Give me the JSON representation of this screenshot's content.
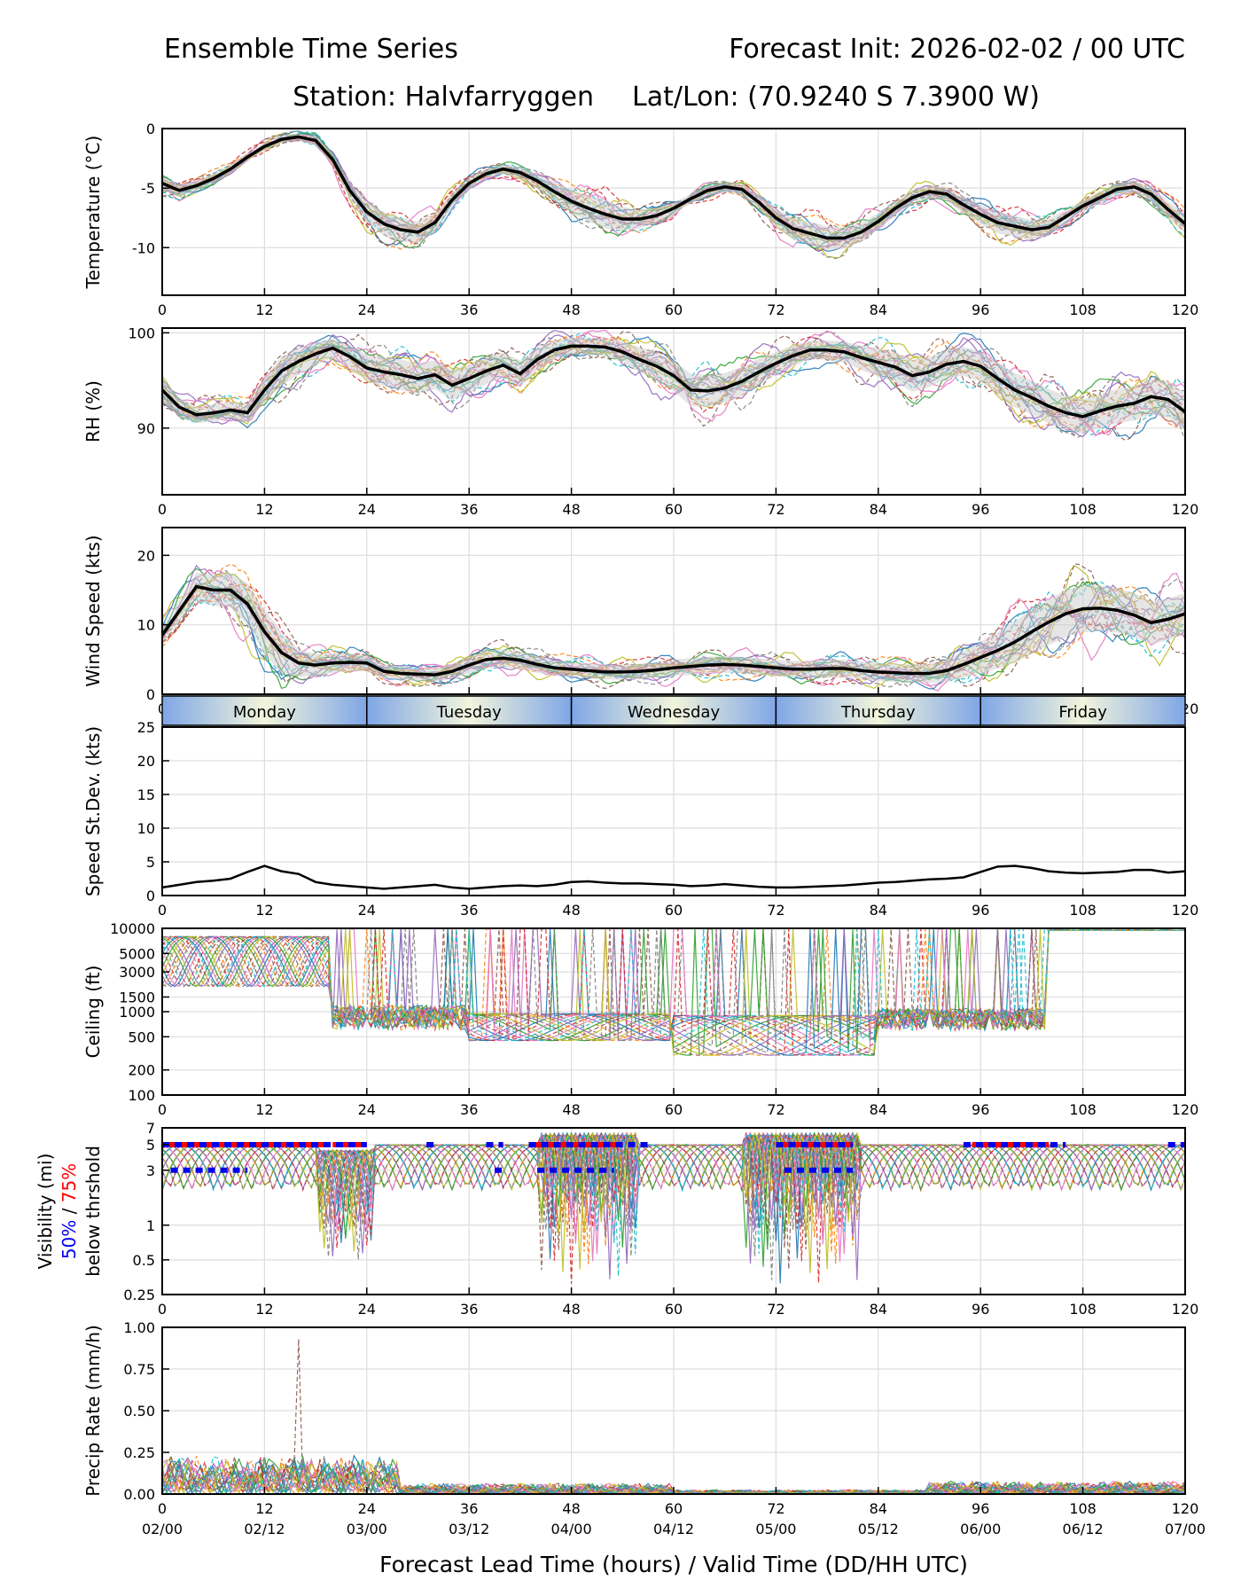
{
  "header": {
    "title_left": "Ensemble Time Series",
    "title_right": "Forecast Init: 2026-02-02 / 00 UTC",
    "station": "Station: Halvfarryggen",
    "latlon": "Lat/Lon: (70.9240 S 7.3900 W)"
  },
  "x_axis": {
    "label": "Forecast Lead Time (hours) / Valid Time (DD/HH UTC)",
    "range": [
      0,
      120
    ],
    "lead_ticks": [
      "0",
      "12",
      "24",
      "36",
      "48",
      "60",
      "72",
      "84",
      "96",
      "108",
      "120"
    ],
    "valid_ticks": [
      "02/00",
      "02/12",
      "03/00",
      "03/12",
      "04/00",
      "04/12",
      "05/00",
      "05/12",
      "06/00",
      "06/12",
      "07/00"
    ]
  },
  "days": {
    "labels": [
      "Monday",
      "Tuesday",
      "Wednesday",
      "Thursday",
      "Friday"
    ],
    "colors": {
      "edge": "#7fa6e6",
      "center": "#f2f5dc"
    }
  },
  "visibility_label": {
    "line1": "Visibility (mi)",
    "p50": "50%",
    "sep": " / ",
    "p75": "75%",
    "line3": "below thrshold"
  },
  "colors": {
    "mean": "#000000",
    "grid": "#dddddd",
    "p50": "#0000ee",
    "p75": "#ff0000",
    "spread": "#cccccc",
    "members": [
      "#1f77b4",
      "#ff7f0e",
      "#2ca02c",
      "#d62728",
      "#9467bd",
      "#8c564b",
      "#e377c2",
      "#7f7f7f",
      "#bcbd22",
      "#17becf"
    ]
  },
  "chart_data": [
    {
      "type": "line",
      "name": "temperature",
      "ylabel": "Temperature (°C)",
      "ylim": [
        -14,
        0
      ],
      "yticks": [
        "0",
        "-5",
        "-10"
      ],
      "ytick_values": [
        0,
        -5,
        -10
      ],
      "x": [
        0,
        2,
        4,
        6,
        8,
        10,
        12,
        14,
        16,
        18,
        20,
        22,
        24,
        26,
        28,
        30,
        32,
        34,
        36,
        38,
        40,
        42,
        44,
        46,
        48,
        50,
        52,
        54,
        56,
        58,
        60,
        62,
        64,
        66,
        68,
        70,
        72,
        74,
        76,
        78,
        80,
        82,
        84,
        86,
        88,
        90,
        92,
        94,
        96,
        98,
        100,
        102,
        104,
        106,
        108,
        110,
        112,
        114,
        116,
        118,
        120
      ],
      "mean": [
        -4.6,
        -5.2,
        -4.8,
        -4.2,
        -3.4,
        -2.4,
        -1.5,
        -0.9,
        -0.7,
        -1.0,
        -2.6,
        -5.2,
        -7.0,
        -8.0,
        -8.5,
        -8.7,
        -7.9,
        -6.0,
        -4.6,
        -3.8,
        -3.4,
        -3.7,
        -4.4,
        -5.3,
        -6.1,
        -6.7,
        -7.2,
        -7.6,
        -7.6,
        -7.3,
        -6.7,
        -5.9,
        -5.2,
        -4.9,
        -5.1,
        -6.2,
        -7.5,
        -8.4,
        -8.8,
        -9.2,
        -9.2,
        -8.7,
        -7.8,
        -6.7,
        -5.8,
        -5.3,
        -5.5,
        -6.4,
        -7.2,
        -7.9,
        -8.2,
        -8.5,
        -8.3,
        -7.4,
        -6.5,
        -5.8,
        -5.1,
        -4.9,
        -5.5,
        -6.8,
        -8.0
      ],
      "stdev": [
        0.6,
        0.5,
        0.4,
        0.4,
        0.4,
        0.3,
        0.3,
        0.3,
        0.3,
        0.4,
        0.5,
        0.7,
        0.9,
        1.0,
        1.0,
        0.9,
        0.8,
        0.6,
        0.5,
        0.4,
        0.4,
        0.5,
        0.6,
        0.8,
        1.0,
        1.1,
        1.2,
        1.0,
        0.8,
        0.6,
        0.5,
        0.4,
        0.4,
        0.4,
        0.5,
        0.6,
        0.8,
        0.9,
        1.0,
        1.0,
        0.9,
        0.8,
        0.7,
        0.6,
        0.6,
        0.5,
        0.6,
        0.7,
        0.8,
        0.9,
        0.9,
        0.8,
        0.7,
        0.6,
        0.5,
        0.5,
        0.5,
        0.5,
        0.6,
        0.7,
        0.8
      ],
      "members": 20
    },
    {
      "type": "line",
      "name": "rh",
      "ylabel": "RH (%)",
      "ylim": [
        83,
        100.5
      ],
      "yticks": [
        "100",
        "90"
      ],
      "ytick_values": [
        100,
        90
      ],
      "x": [
        0,
        2,
        4,
        6,
        8,
        10,
        12,
        14,
        16,
        18,
        20,
        22,
        24,
        26,
        28,
        30,
        32,
        34,
        36,
        38,
        40,
        42,
        44,
        46,
        48,
        50,
        52,
        54,
        56,
        58,
        60,
        62,
        64,
        66,
        68,
        70,
        72,
        74,
        76,
        78,
        80,
        82,
        84,
        86,
        88,
        90,
        92,
        94,
        96,
        98,
        100,
        102,
        104,
        106,
        108,
        110,
        112,
        114,
        116,
        118,
        120
      ],
      "mean": [
        94.0,
        92.2,
        91.4,
        91.6,
        91.9,
        91.6,
        94.0,
        96.0,
        97.0,
        97.8,
        98.4,
        97.5,
        96.3,
        95.9,
        95.6,
        95.2,
        95.6,
        94.5,
        95.2,
        96.0,
        96.6,
        95.7,
        97.2,
        98.2,
        98.6,
        98.6,
        98.5,
        98.0,
        97.2,
        96.5,
        95.5,
        94.0,
        93.9,
        94.2,
        94.9,
        95.9,
        96.8,
        97.6,
        98.2,
        98.2,
        98.0,
        97.4,
        96.9,
        96.4,
        95.5,
        95.9,
        96.7,
        97.0,
        96.5,
        95.2,
        94.0,
        93.2,
        92.3,
        91.6,
        91.2,
        91.8,
        92.3,
        92.6,
        93.3,
        93.0,
        91.7
      ],
      "stdev": [
        1.2,
        1.0,
        0.9,
        0.9,
        0.9,
        1.0,
        1.3,
        1.5,
        1.4,
        1.2,
        1.0,
        1.2,
        1.4,
        1.5,
        1.6,
        1.6,
        1.5,
        1.6,
        1.5,
        1.4,
        1.3,
        1.4,
        1.2,
        1.0,
        0.9,
        0.9,
        1.0,
        1.1,
        1.3,
        1.5,
        1.6,
        1.7,
        1.7,
        1.6,
        1.5,
        1.4,
        1.2,
        1.1,
        1.0,
        1.0,
        1.1,
        1.3,
        1.5,
        1.6,
        1.7,
        1.6,
        1.5,
        1.5,
        1.6,
        1.7,
        1.8,
        1.8,
        1.8,
        1.8,
        1.8,
        1.8,
        1.8,
        1.8,
        1.9,
        1.9,
        2.0
      ],
      "members": 20
    },
    {
      "type": "line",
      "name": "wind_speed",
      "ylabel": "Wind Speed (kts)",
      "ylim": [
        0,
        24
      ],
      "yticks": [
        "20",
        "10",
        "0"
      ],
      "ytick_values": [
        20,
        10,
        0
      ],
      "x": [
        0,
        2,
        4,
        6,
        8,
        10,
        12,
        14,
        16,
        18,
        20,
        22,
        24,
        26,
        28,
        30,
        32,
        34,
        36,
        38,
        40,
        42,
        44,
        46,
        48,
        50,
        52,
        54,
        56,
        58,
        60,
        62,
        64,
        66,
        68,
        70,
        72,
        74,
        76,
        78,
        80,
        82,
        84,
        86,
        88,
        90,
        92,
        94,
        96,
        98,
        100,
        102,
        104,
        106,
        108,
        110,
        112,
        114,
        116,
        118,
        120
      ],
      "mean": [
        8.5,
        12.0,
        15.5,
        15.0,
        15.0,
        13.0,
        9.0,
        6.0,
        4.5,
        4.2,
        4.5,
        4.6,
        4.5,
        3.3,
        3.0,
        2.9,
        2.8,
        3.3,
        4.2,
        5.0,
        5.2,
        4.9,
        4.3,
        3.8,
        3.6,
        3.4,
        3.2,
        3.2,
        3.3,
        3.5,
        3.8,
        4.0,
        4.2,
        4.3,
        4.2,
        4.0,
        3.8,
        3.6,
        3.6,
        3.7,
        3.7,
        3.4,
        3.2,
        3.1,
        3.0,
        3.0,
        3.4,
        4.3,
        5.3,
        6.3,
        7.5,
        9.0,
        10.4,
        11.6,
        12.3,
        12.4,
        12.1,
        11.4,
        10.3,
        10.8,
        11.6
      ],
      "stdev": [
        1.2,
        1.6,
        2.0,
        2.2,
        2.5,
        3.0,
        3.2,
        3.0,
        2.0,
        1.6,
        1.4,
        1.3,
        1.2,
        1.0,
        1.0,
        1.0,
        1.0,
        1.1,
        1.2,
        1.3,
        1.3,
        1.3,
        1.2,
        1.1,
        1.1,
        1.1,
        1.1,
        1.1,
        1.1,
        1.1,
        1.2,
        1.2,
        1.2,
        1.2,
        1.2,
        1.2,
        1.2,
        1.2,
        1.2,
        1.3,
        1.3,
        1.3,
        1.3,
        1.3,
        1.3,
        1.4,
        1.6,
        1.9,
        2.3,
        2.6,
        3.0,
        3.2,
        3.3,
        3.4,
        3.4,
        3.3,
        3.2,
        3.2,
        3.1,
        3.0,
        3.0
      ],
      "members": 20
    },
    {
      "type": "line",
      "name": "speed_stdev",
      "ylabel": "Speed St.Dev. (kts)",
      "ylim": [
        0,
        25
      ],
      "yticks": [
        "25",
        "20",
        "15",
        "10",
        "5",
        "0"
      ],
      "ytick_values": [
        25,
        20,
        15,
        10,
        5,
        0
      ],
      "x": [
        0,
        2,
        4,
        6,
        8,
        10,
        12,
        14,
        16,
        18,
        20,
        22,
        24,
        26,
        28,
        30,
        32,
        34,
        36,
        38,
        40,
        42,
        44,
        46,
        48,
        50,
        52,
        54,
        56,
        58,
        60,
        62,
        64,
        66,
        68,
        70,
        72,
        74,
        76,
        78,
        80,
        82,
        84,
        86,
        88,
        90,
        92,
        94,
        96,
        98,
        100,
        102,
        104,
        106,
        108,
        110,
        112,
        114,
        116,
        118,
        120
      ],
      "values": [
        1.2,
        1.6,
        2.0,
        2.2,
        2.5,
        3.5,
        4.4,
        3.6,
        3.2,
        2.0,
        1.6,
        1.4,
        1.2,
        1.0,
        1.2,
        1.4,
        1.6,
        1.2,
        1.0,
        1.2,
        1.4,
        1.5,
        1.4,
        1.6,
        2.0,
        2.1,
        1.9,
        1.8,
        1.8,
        1.7,
        1.6,
        1.4,
        1.5,
        1.7,
        1.5,
        1.3,
        1.2,
        1.2,
        1.3,
        1.4,
        1.5,
        1.7,
        1.9,
        2.0,
        2.2,
        2.4,
        2.5,
        2.7,
        3.5,
        4.3,
        4.4,
        4.1,
        3.6,
        3.4,
        3.3,
        3.4,
        3.5,
        3.8,
        3.8,
        3.4,
        3.6
      ]
    },
    {
      "type": "line",
      "name": "ceiling",
      "ylabel": "Ceiling (ft)",
      "yscale": "log",
      "ylim": [
        100,
        10000
      ],
      "yticks": [
        "10000",
        "5000",
        "3000",
        "1500",
        "1000",
        "500",
        "200",
        "100"
      ],
      "ytick_values": [
        10000,
        5000,
        3000,
        1500,
        1000,
        500,
        200,
        100
      ],
      "members": 20
    },
    {
      "type": "line",
      "name": "visibility",
      "yscale": "log",
      "ylim": [
        0.25,
        7
      ],
      "yticks": [
        "7",
        "5",
        "3",
        "1",
        "0.5",
        "0.25"
      ],
      "ytick_values": [
        7,
        5,
        3,
        1,
        0.5,
        0.25
      ],
      "p75_segments": [
        [
          0,
          19
        ],
        [
          20,
          24
        ],
        [
          43,
          54
        ],
        [
          72,
          81
        ],
        [
          95,
          104
        ]
      ],
      "p50_segments": [
        [
          0,
          24
        ],
        [
          31,
          32
        ],
        [
          38,
          40
        ],
        [
          43,
          57
        ],
        [
          72,
          81
        ],
        [
          94,
          106
        ],
        [
          118,
          120
        ]
      ],
      "members": 20
    },
    {
      "type": "line",
      "name": "precip_rate",
      "ylabel": "Precip Rate (mm/h)",
      "ylim": [
        0,
        1.0
      ],
      "yticks": [
        "1.00",
        "0.75",
        "0.50",
        "0.25",
        "0.00"
      ],
      "ytick_values": [
        1.0,
        0.75,
        0.5,
        0.25,
        0.0
      ],
      "members": 20
    }
  ]
}
